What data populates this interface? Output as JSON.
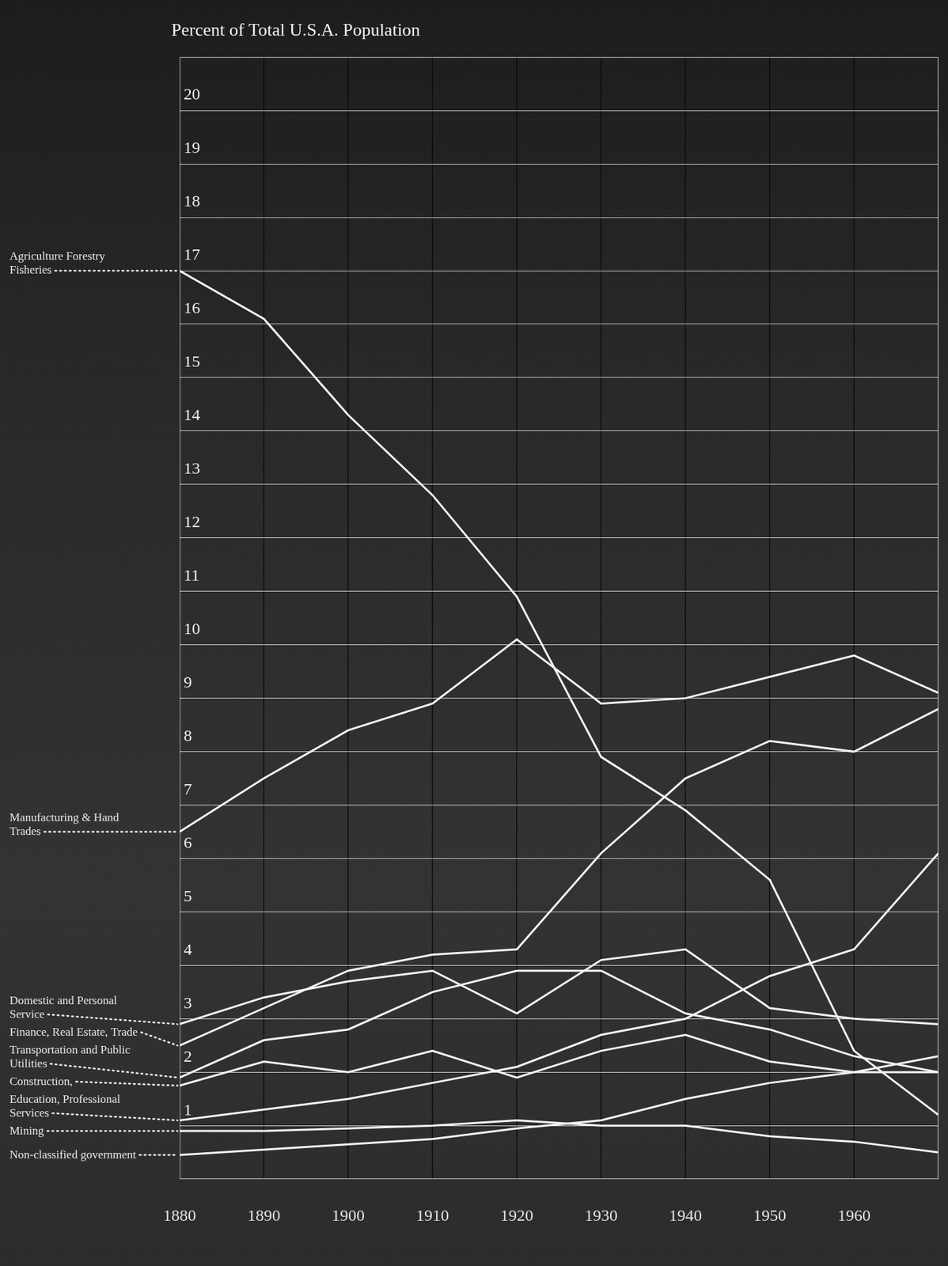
{
  "chart_data": {
    "type": "line",
    "title": "Percent of Total U.S.A. Population",
    "x": [
      1880,
      1890,
      1900,
      1910,
      1920,
      1930,
      1940,
      1950,
      1960,
      1970
    ],
    "xlim": [
      1880,
      1970
    ],
    "xticks": [
      1880,
      1890,
      1900,
      1910,
      1920,
      1930,
      1940,
      1950,
      1960
    ],
    "ylim": [
      0,
      21
    ],
    "yticks": [
      1,
      2,
      3,
      4,
      5,
      6,
      7,
      8,
      9,
      10,
      11,
      12,
      13,
      14,
      15,
      16,
      17,
      18,
      19,
      20
    ],
    "grid": true,
    "series": [
      {
        "name": "Agriculture Forestry Fisheries",
        "color": "#f2f2f2",
        "values": [
          17.0,
          16.1,
          14.3,
          12.8,
          10.9,
          7.9,
          6.9,
          5.6,
          2.4,
          1.2
        ]
      },
      {
        "name": "Manufacturing & Hand Trades",
        "color": "#f2f2f2",
        "values": [
          6.5,
          7.5,
          8.4,
          8.9,
          10.1,
          8.9,
          9.0,
          9.4,
          9.8,
          9.1
        ]
      },
      {
        "name": "Domestic and Personal Service",
        "color": "#f2f2f2",
        "values": [
          2.9,
          3.4,
          3.7,
          3.9,
          3.1,
          4.1,
          4.3,
          3.2,
          3.0,
          2.9
        ]
      },
      {
        "name": "Finance, Real Estate, Trade",
        "color": "#f2f2f2",
        "values": [
          2.5,
          3.2,
          3.9,
          4.2,
          4.3,
          6.1,
          7.5,
          8.2,
          8.0,
          8.8
        ]
      },
      {
        "name": "Transportation and Public Utilities",
        "color": "#f2f2f2",
        "values": [
          1.9,
          2.6,
          2.8,
          3.5,
          3.9,
          3.9,
          3.1,
          2.8,
          2.3,
          2.0
        ]
      },
      {
        "name": "Construction,",
        "color": "#f2f2f2",
        "values": [
          1.75,
          2.2,
          2.0,
          2.4,
          1.9,
          2.4,
          2.7,
          2.2,
          2.0,
          2.0
        ]
      },
      {
        "name": "Education, Professional Services",
        "color": "#f2f2f2",
        "values": [
          1.1,
          1.3,
          1.5,
          1.8,
          2.1,
          2.7,
          3.0,
          3.8,
          4.3,
          6.1
        ]
      },
      {
        "name": "Mining",
        "color": "#f2f2f2",
        "values": [
          0.9,
          0.9,
          0.95,
          1.0,
          1.1,
          1.0,
          1.0,
          0.8,
          0.7,
          0.5
        ]
      },
      {
        "name": "Non-classified government",
        "color": "#f2f2f2",
        "values": [
          0.45,
          0.55,
          0.65,
          0.75,
          0.95,
          1.1,
          1.5,
          1.8,
          2.0,
          2.3
        ]
      }
    ]
  }
}
